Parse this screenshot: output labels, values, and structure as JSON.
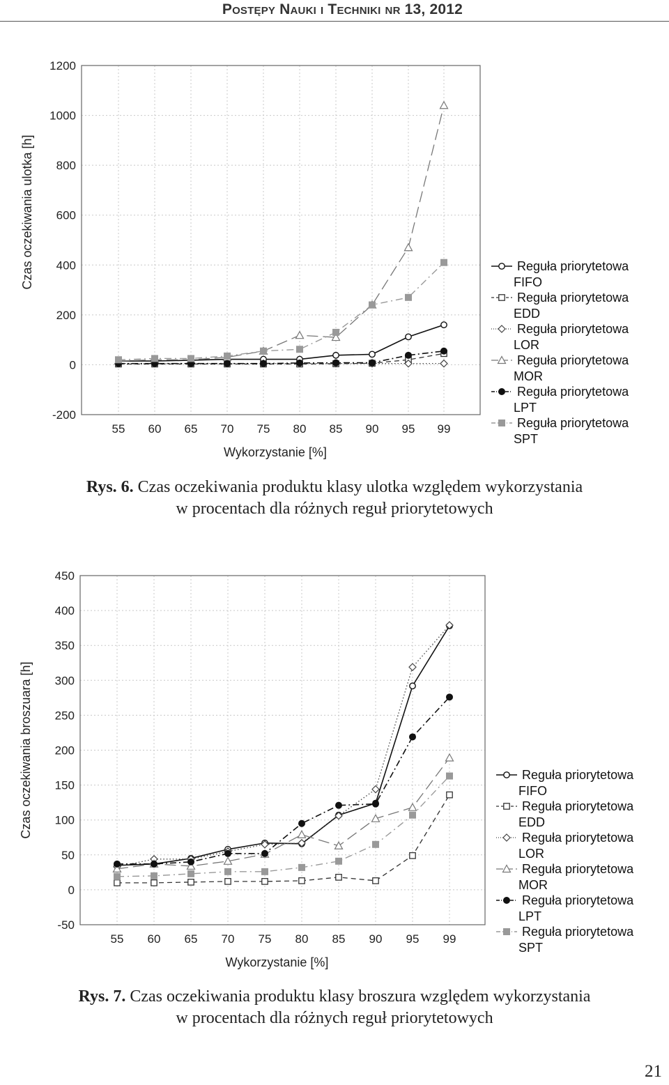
{
  "header": {
    "text": "Postępy Nauki i Techniki nr 13, 2012"
  },
  "chart_data": [
    {
      "type": "line",
      "title": "",
      "xlabel": "Wykorzystanie [%]",
      "ylabel": "Czas oczekiwania ulotka [h]",
      "categories": [
        "55",
        "60",
        "65",
        "70",
        "75",
        "80",
        "85",
        "90",
        "95",
        "99"
      ],
      "ylim": [
        -200,
        1200
      ],
      "yticks": [
        -200,
        0,
        200,
        400,
        600,
        800,
        1000,
        1200
      ],
      "grid": true,
      "legend_position": "right",
      "series": [
        {
          "name": "Reguła priorytetowa FIFO",
          "legend_lines": [
            "Reguła priorytetowa",
            "FIFO"
          ],
          "values": [
            15,
            15,
            18,
            22,
            22,
            22,
            38,
            42,
            112,
            160
          ]
        },
        {
          "name": "Reguła priorytetowa EDD",
          "legend_lines": [
            "Reguła priorytetowa",
            "EDD"
          ],
          "values": [
            3,
            3,
            3,
            3,
            3,
            3,
            4,
            6,
            20,
            45
          ]
        },
        {
          "name": "Reguła priorytetowa LOR",
          "legend_lines": [
            "Reguła priorytetowa",
            "LOR"
          ],
          "values": [
            5,
            5,
            5,
            5,
            5,
            5,
            5,
            5,
            5,
            5
          ]
        },
        {
          "name": "Reguła priorytetowa MOR",
          "legend_lines": [
            "Reguła priorytetowa",
            "MOR"
          ],
          "values": [
            15,
            20,
            20,
            30,
            55,
            118,
            110,
            240,
            470,
            1040
          ]
        },
        {
          "name": "Reguła priorytetowa LPT",
          "legend_lines": [
            "Reguła priorytetowa",
            "LPT"
          ],
          "values": [
            5,
            5,
            5,
            5,
            5,
            7,
            8,
            8,
            38,
            55
          ]
        },
        {
          "name": "Reguła priorytetowa SPT",
          "legend_lines": [
            "Reguła priorytetowa",
            "SPT"
          ],
          "values": [
            20,
            25,
            25,
            35,
            55,
            62,
            130,
            240,
            270,
            410
          ]
        }
      ]
    },
    {
      "type": "line",
      "title": "",
      "xlabel": "Wykorzystanie [%]",
      "ylabel": "Czas oczekiwania broszuara [h]",
      "categories": [
        "55",
        "60",
        "65",
        "70",
        "75",
        "80",
        "85",
        "90",
        "95",
        "99"
      ],
      "ylim": [
        -50,
        450
      ],
      "yticks": [
        -50,
        0,
        50,
        100,
        150,
        200,
        250,
        300,
        350,
        400,
        450
      ],
      "grid": true,
      "legend_position": "right",
      "series": [
        {
          "name": "Reguła priorytetowa FIFO",
          "legend_lines": [
            "Reguła priorytetowa",
            "FIFO"
          ],
          "values": [
            35,
            37,
            45,
            58,
            67,
            66,
            107,
            124,
            292,
            378
          ]
        },
        {
          "name": "Reguła priorytetowa EDD",
          "legend_lines": [
            "Reguła priorytetowa",
            "EDD"
          ],
          "values": [
            10,
            10,
            11,
            12,
            12,
            13,
            18,
            13,
            49,
            136
          ]
        },
        {
          "name": "Reguła priorytetowa LOR",
          "legend_lines": [
            "Reguła priorytetowa",
            "LOR"
          ],
          "values": [
            33,
            44,
            44,
            55,
            65,
            67,
            106,
            144,
            319,
            379
          ]
        },
        {
          "name": "Reguła priorytetowa MOR",
          "legend_lines": [
            "Reguła priorytetowa",
            "MOR"
          ],
          "values": [
            30,
            37,
            34,
            41,
            51,
            79,
            63,
            102,
            118,
            189
          ]
        },
        {
          "name": "Reguła priorytetowa LPT",
          "legend_lines": [
            "Reguła priorytetowa",
            "LPT"
          ],
          "values": [
            37,
            37,
            40,
            52,
            52,
            95,
            121,
            123,
            219,
            276
          ]
        },
        {
          "name": "Reguła priorytetowa SPT",
          "legend_lines": [
            "Reguła priorytetowa",
            "SPT"
          ],
          "values": [
            19,
            20,
            23,
            26,
            26,
            32,
            41,
            65,
            107,
            163
          ]
        }
      ]
    }
  ],
  "captions": [
    {
      "label": "Rys. 6.",
      "line1": " Czas oczekiwania produktu klasy ulotka względem wykorzystania",
      "line2": "w procentach dla różnych reguł priorytetowych"
    },
    {
      "label": "Rys. 7.",
      "line1": " Czas oczekiwania produktu klasy broszura względem wykorzystania",
      "line2": "w procentach dla różnych reguł priorytetowych"
    }
  ],
  "page_number": "21",
  "colors": {
    "FIFO": "#111111",
    "EDD": "#333333",
    "LOR": "#444444",
    "MOR": "#777777",
    "LPT": "#111111",
    "SPT": "#999999",
    "grid": "#c8c8c8",
    "frame": "#666666"
  }
}
